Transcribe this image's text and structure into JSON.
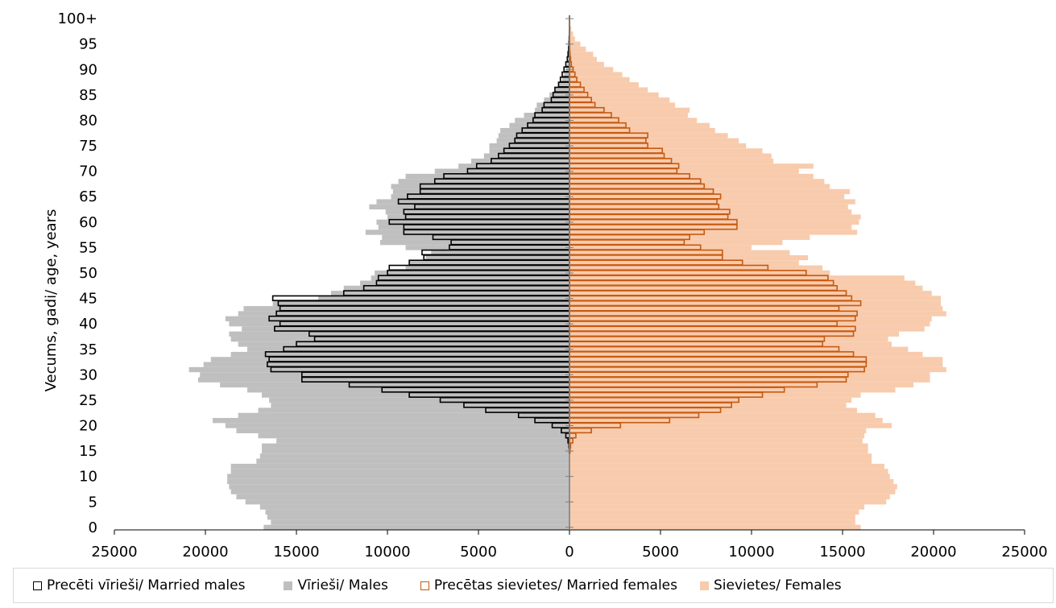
{
  "chart_data": {
    "type": "bar",
    "orientation": "horizontal-population-pyramid",
    "ylabel": "Vecums, gadi/ age, years",
    "y_tick_labels": [
      "0",
      "5",
      "10",
      "15",
      "20",
      "25",
      "30",
      "35",
      "40",
      "45",
      "50",
      "55",
      "60",
      "65",
      "70",
      "75",
      "80",
      "85",
      "90",
      "95",
      "100+"
    ],
    "x_tick_labels": [
      "25000",
      "20000",
      "15000",
      "10000",
      "5000",
      "0",
      "5000",
      "10000",
      "15000",
      "20000",
      "25000"
    ],
    "xlim": [
      -25000,
      25000
    ],
    "ages": [
      0,
      1,
      2,
      3,
      4,
      5,
      6,
      7,
      8,
      9,
      10,
      11,
      12,
      13,
      14,
      15,
      16,
      17,
      18,
      19,
      20,
      21,
      22,
      23,
      24,
      25,
      26,
      27,
      28,
      29,
      30,
      31,
      32,
      33,
      34,
      35,
      36,
      37,
      38,
      39,
      40,
      41,
      42,
      43,
      44,
      45,
      46,
      47,
      48,
      49,
      50,
      51,
      52,
      53,
      54,
      55,
      56,
      57,
      58,
      59,
      60,
      61,
      62,
      63,
      64,
      65,
      66,
      67,
      68,
      69,
      70,
      71,
      72,
      73,
      74,
      75,
      76,
      77,
      78,
      79,
      80,
      81,
      82,
      83,
      84,
      85,
      86,
      87,
      88,
      89,
      90,
      91,
      92,
      93,
      94,
      95,
      96,
      97,
      98,
      99,
      "100+"
    ],
    "series": [
      {
        "name": "Vīrieši/ Males",
        "side": "left",
        "style": "fill",
        "color": "#bfbfbf",
        "values": [
          16800,
          16400,
          16600,
          16700,
          17000,
          17800,
          18300,
          18600,
          18700,
          18800,
          18800,
          18600,
          18600,
          17200,
          17000,
          16900,
          16900,
          16100,
          17100,
          18300,
          18900,
          19600,
          18200,
          17100,
          16400,
          16500,
          16900,
          17700,
          19200,
          20400,
          20300,
          20900,
          20100,
          19700,
          18600,
          17700,
          18200,
          18600,
          18700,
          18000,
          18700,
          18900,
          18200,
          17900,
          16300,
          13800,
          13100,
          12400,
          11500,
          10900,
          10700,
          9000,
          8800,
          7900,
          7600,
          9000,
          10400,
          10300,
          11200,
          10500,
          10600,
          10000,
          10100,
          11000,
          10600,
          9800,
          9700,
          9800,
          9400,
          9000,
          7400,
          6100,
          5400,
          4700,
          4400,
          4400,
          4000,
          3900,
          3800,
          3300,
          3000,
          2500,
          1900,
          1800,
          1400,
          1100,
          800,
          600,
          400,
          300,
          200,
          120,
          70,
          50,
          30,
          20,
          10,
          5,
          3,
          2,
          1
        ]
      },
      {
        "name": "Precēti vīrieši/ Married males",
        "side": "left",
        "style": "outline",
        "color": "#000000",
        "values": [
          0,
          0,
          0,
          0,
          0,
          0,
          0,
          0,
          0,
          0,
          0,
          0,
          0,
          0,
          0,
          10,
          30,
          80,
          200,
          450,
          950,
          1900,
          2800,
          4600,
          5800,
          7100,
          8800,
          10300,
          12100,
          14700,
          14700,
          16400,
          16600,
          16500,
          16700,
          15700,
          15000,
          14000,
          14300,
          16200,
          15900,
          16500,
          16100,
          15900,
          16000,
          16300,
          12400,
          11300,
          10600,
          10500,
          10000,
          9900,
          8800,
          8000,
          8100,
          6600,
          6500,
          7500,
          9100,
          9100,
          9900,
          9000,
          9100,
          8500,
          9400,
          8900,
          8200,
          8200,
          7400,
          6900,
          5600,
          5100,
          4300,
          3900,
          3600,
          3300,
          3000,
          2900,
          2600,
          2300,
          2000,
          1900,
          1500,
          1400,
          1000,
          900,
          800,
          600,
          500,
          400,
          300,
          200,
          120,
          80,
          50,
          30,
          20,
          10,
          5,
          3,
          2
        ]
      },
      {
        "name": "Sievietes/ Females",
        "side": "right",
        "style": "fill",
        "color": "#f8cbad",
        "values": [
          16000,
          15700,
          15700,
          15900,
          16200,
          17400,
          17600,
          17900,
          18000,
          17800,
          17600,
          17500,
          17300,
          16600,
          16600,
          16400,
          16400,
          16100,
          16200,
          16300,
          17700,
          17200,
          16800,
          15800,
          15200,
          15500,
          16000,
          17900,
          18900,
          19800,
          19800,
          20700,
          20500,
          20500,
          19400,
          18600,
          17700,
          17500,
          18100,
          19500,
          19800,
          19900,
          20700,
          20500,
          20400,
          20400,
          19900,
          19400,
          19000,
          18400,
          14300,
          13900,
          12600,
          13100,
          12100,
          10000,
          11700,
          13200,
          15800,
          15500,
          15900,
          16000,
          15500,
          15300,
          15700,
          15100,
          15400,
          14300,
          14000,
          13400,
          12600,
          13400,
          11200,
          11100,
          10600,
          9700,
          9300,
          8700,
          8000,
          7700,
          7000,
          6500,
          6600,
          5800,
          5500,
          4900,
          4300,
          3800,
          3300,
          2900,
          2400,
          1900,
          1500,
          1300,
          900,
          600,
          300,
          200,
          100,
          50,
          20
        ]
      },
      {
        "name": "Precētas sievietes/ Married females",
        "side": "right",
        "style": "outline",
        "color": "#c55a11",
        "values": [
          0,
          0,
          0,
          0,
          0,
          0,
          0,
          0,
          0,
          0,
          0,
          0,
          0,
          0,
          0,
          30,
          60,
          180,
          350,
          1200,
          2800,
          5500,
          7100,
          8300,
          8900,
          9300,
          10600,
          11800,
          13600,
          15200,
          15300,
          16200,
          16300,
          16300,
          15600,
          14800,
          13900,
          14000,
          15600,
          15700,
          14700,
          15700,
          15800,
          14800,
          16000,
          15500,
          15200,
          14700,
          14500,
          14200,
          13000,
          10900,
          9500,
          8400,
          8400,
          7200,
          6300,
          6600,
          7400,
          9200,
          9200,
          8700,
          8800,
          8200,
          8100,
          8300,
          7900,
          7400,
          7200,
          6600,
          5900,
          6000,
          5600,
          5200,
          5100,
          4300,
          4200,
          4300,
          3300,
          3100,
          2700,
          2300,
          1900,
          1400,
          1200,
          1000,
          800,
          600,
          400,
          300,
          200,
          100,
          60,
          30,
          15,
          8,
          5,
          3,
          2,
          1,
          1
        ]
      }
    ],
    "legend": [
      {
        "label": "Precēti vīrieši/ Married males",
        "fill": "#ffffff",
        "border": "#000000"
      },
      {
        "label": "Vīrieši/ Males",
        "fill": "#bfbfbf",
        "border": "#bfbfbf"
      },
      {
        "label": "Precētas sievietes/ Married females",
        "fill": "#ffffff",
        "border": "#c55a11"
      },
      {
        "label": "Sievietes/ Females",
        "fill": "#f8cbad",
        "border": "#f8cbad"
      }
    ],
    "legend_position": "bottom",
    "grid": false
  }
}
